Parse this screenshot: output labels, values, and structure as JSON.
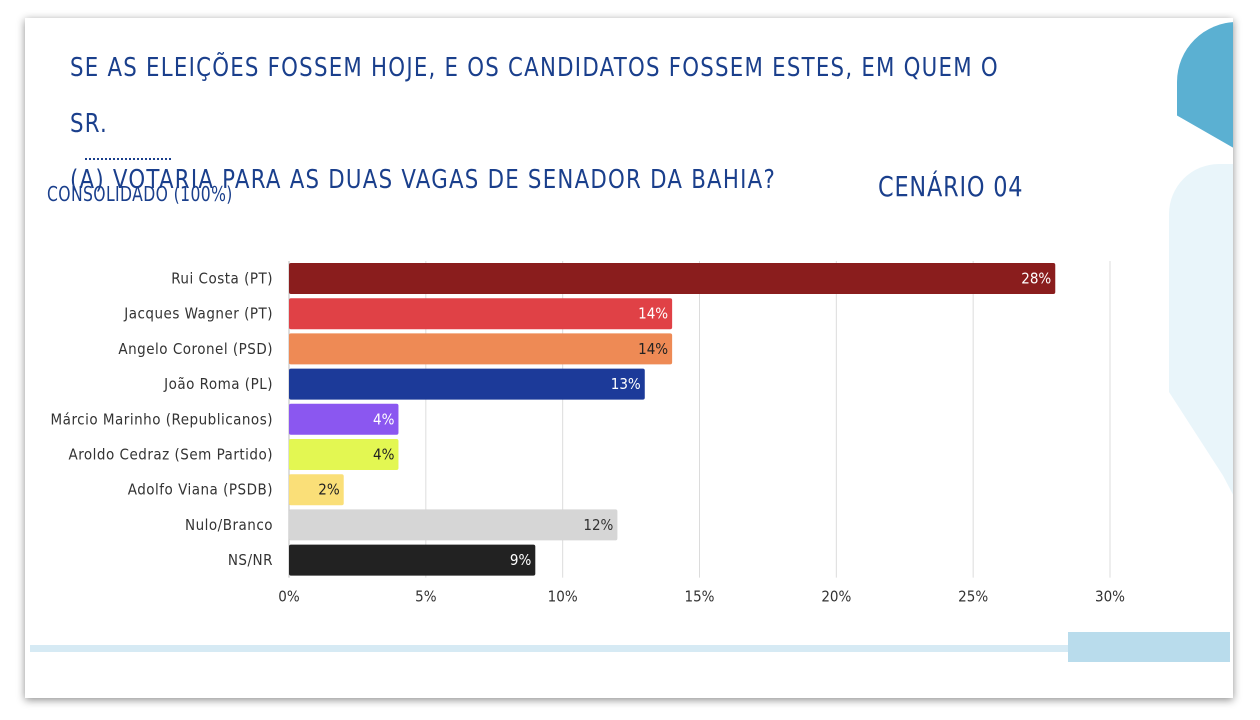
{
  "header": {
    "title_line1": "SE AS ELEIÇÕES FOSSEM HOJE, E OS CANDIDATOS FOSSEM ESTES, EM QUEM O SR.",
    "title_line2": "(A) VOTARIA PARA AS DUAS VAGAS DE SENADOR DA BAHIA?",
    "subtitle": "CONSOLIDADO (100%)",
    "scenario": "CENÁRIO 04"
  },
  "chart_data": {
    "type": "bar",
    "orientation": "horizontal",
    "categories": [
      "Rui Costa (PT)",
      "Jacques Wagner (PT)",
      "Angelo Coronel (PSD)",
      "João Roma (PL)",
      "Márcio Marinho (Republicanos)",
      "Aroldo Cedraz (Sem Partido)",
      "Adolfo Viana (PSDB)",
      "Nulo/Branco",
      "NS/NR"
    ],
    "values": [
      28,
      14,
      14,
      13,
      4,
      4,
      2,
      12,
      9
    ],
    "data_labels": [
      "28%",
      "14%",
      "14%",
      "13%",
      "4%",
      "4%",
      "2%",
      "12%",
      "9%"
    ],
    "colors": [
      "#8a1d1d",
      "#e04146",
      "#ee8a55",
      "#1c3a99",
      "#8b57f0",
      "#e3f752",
      "#fadf78",
      "#d6d6d6",
      "#222222"
    ],
    "label_colors": [
      "#ffffff",
      "#ffffff",
      "#222222",
      "#ffffff",
      "#ffffff",
      "#222222",
      "#222222",
      "#333333",
      "#ffffff"
    ],
    "xticks": [
      0,
      5,
      10,
      15,
      20,
      25,
      30
    ],
    "xtick_labels": [
      "0%",
      "5%",
      "10%",
      "15%",
      "20%",
      "25%",
      "30%"
    ],
    "xlim": [
      0,
      30
    ],
    "grid": true
  }
}
